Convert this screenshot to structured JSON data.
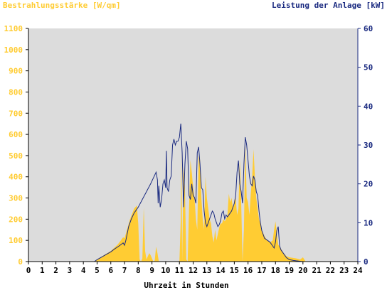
{
  "chart_data": {
    "type": "area",
    "left_axis_title": "Bestrahlungsstärke [W/qm]",
    "right_axis_title": "Leistung der Anlage [kW]",
    "xlabel": "Uhrzeit in Stunden",
    "x_ticks": [
      "0",
      "1",
      "2",
      "3",
      "4",
      "5",
      "6",
      "7",
      "8",
      "9",
      "10",
      "11",
      "12",
      "13",
      "14",
      "15",
      "16",
      "17",
      "18",
      "19",
      "20",
      "21",
      "22",
      "23",
      "24"
    ],
    "left_ticks": [
      "0",
      "100",
      "200",
      "300",
      "400",
      "500",
      "600",
      "700",
      "800",
      "900",
      "1000",
      "1100"
    ],
    "right_ticks": [
      "0",
      "10",
      "20",
      "30",
      "40",
      "50",
      "60"
    ],
    "xlim": [
      0,
      24
    ],
    "ylim_left": [
      0,
      1100
    ],
    "ylim_right": [
      0,
      60
    ],
    "colors": {
      "irradiance": "#ffcc33",
      "power": "#1a2a80",
      "plot_bg": "#dcdcdc",
      "left_axis": "#ffcc33",
      "right_axis": "#1a2a80"
    },
    "series": [
      {
        "axis": "left",
        "x": [
          0,
          4.8,
          5.0,
          5.5,
          6.0,
          6.5,
          6.9,
          7.0,
          7.4,
          7.7,
          7.9,
          8.0,
          8.1,
          8.2,
          8.3,
          8.4,
          8.5,
          8.6,
          8.8,
          8.9,
          9.0,
          9.1,
          9.2,
          9.3,
          9.4,
          9.5,
          9.6,
          9.8,
          10.0,
          10.5,
          11.0,
          11.1,
          11.15,
          11.2,
          11.3,
          11.4,
          11.5,
          11.6,
          11.7,
          11.8,
          11.9,
          12.0,
          12.1,
          12.2,
          12.3,
          12.4,
          12.5,
          12.6,
          12.7,
          12.8,
          12.9,
          13.0,
          13.1,
          13.2,
          13.3,
          13.4,
          13.5,
          13.6,
          13.7,
          13.8,
          13.9,
          14.0,
          14.1,
          14.2,
          14.3,
          14.4,
          14.5,
          14.6,
          14.7,
          14.8,
          14.9,
          15.0,
          15.1,
          15.2,
          15.3,
          15.4,
          15.5,
          15.6,
          15.7,
          15.8,
          15.9,
          16.0,
          16.1,
          16.2,
          16.3,
          16.4,
          16.5,
          16.6,
          16.7,
          16.8,
          16.9,
          17.0,
          17.2,
          17.4,
          17.6,
          17.8,
          17.9,
          18.0,
          18.1,
          18.2,
          18.4,
          18.6,
          18.8,
          19.0,
          19.5,
          19.8,
          20.0,
          20.2,
          24
        ],
        "values": [
          0,
          0,
          10,
          30,
          50,
          80,
          115,
          110,
          200,
          250,
          265,
          180,
          10,
          0,
          15,
          255,
          50,
          10,
          40,
          30,
          15,
          0,
          5,
          70,
          40,
          0,
          0,
          0,
          0,
          0,
          0,
          200,
          510,
          0,
          450,
          350,
          10,
          0,
          250,
          480,
          420,
          350,
          300,
          200,
          150,
          500,
          480,
          300,
          200,
          150,
          400,
          300,
          250,
          200,
          180,
          120,
          90,
          150,
          100,
          130,
          160,
          180,
          180,
          200,
          190,
          200,
          220,
          320,
          280,
          300,
          250,
          290,
          300,
          220,
          250,
          480,
          280,
          0,
          150,
          560,
          300,
          280,
          220,
          320,
          400,
          530,
          400,
          300,
          250,
          200,
          180,
          150,
          120,
          100,
          90,
          100,
          150,
          190,
          130,
          80,
          60,
          40,
          25,
          20,
          15,
          10,
          20,
          0,
          0
        ]
      },
      {
        "axis": "right",
        "x": [
          0,
          4.8,
          5.0,
          5.5,
          6.0,
          6.3,
          6.6,
          6.9,
          7.0,
          7.1,
          7.3,
          7.5,
          7.7,
          8.0,
          8.3,
          8.6,
          8.9,
          9.1,
          9.3,
          9.4,
          9.45,
          9.5,
          9.6,
          9.7,
          9.8,
          9.9,
          10.0,
          10.05,
          10.1,
          10.2,
          10.3,
          10.4,
          10.5,
          10.6,
          10.7,
          10.8,
          10.9,
          11.0,
          11.1,
          11.2,
          11.3,
          11.4,
          11.5,
          11.6,
          11.7,
          11.8,
          11.9,
          12.0,
          12.1,
          12.2,
          12.3,
          12.4,
          12.5,
          12.6,
          12.7,
          12.8,
          12.9,
          13.0,
          13.1,
          13.2,
          13.3,
          13.4,
          13.5,
          13.6,
          13.7,
          13.8,
          13.9,
          14.0,
          14.1,
          14.2,
          14.3,
          14.4,
          14.5,
          14.6,
          14.7,
          14.8,
          14.9,
          15.0,
          15.1,
          15.2,
          15.3,
          15.4,
          15.5,
          15.6,
          15.7,
          15.8,
          15.9,
          16.0,
          16.1,
          16.2,
          16.3,
          16.4,
          16.5,
          16.6,
          16.7,
          16.8,
          16.9,
          17.0,
          17.2,
          17.4,
          17.6,
          17.8,
          17.9,
          18.0,
          18.1,
          18.2,
          18.3,
          18.4,
          18.6,
          18.8,
          19.0,
          19.3,
          19.5,
          20.0,
          24
        ],
        "values": [
          0,
          0,
          0.5,
          1.5,
          2.5,
          3.3,
          4.0,
          4.8,
          4.2,
          5.5,
          9.0,
          11.0,
          12.5,
          14.0,
          16.0,
          18.0,
          20.0,
          21.5,
          23.0,
          21.0,
          15.0,
          19.5,
          14.0,
          16.0,
          20.0,
          21.0,
          19.0,
          28.5,
          19.0,
          18.0,
          21.0,
          22.0,
          30.0,
          31.5,
          30.0,
          31.0,
          31.0,
          32.0,
          35.5,
          28.0,
          14.0,
          25.0,
          31.0,
          29.0,
          17.0,
          16.0,
          20.0,
          17.0,
          16.5,
          15.0,
          28.0,
          29.5,
          25.0,
          19.0,
          18.5,
          13.0,
          10.0,
          9.0,
          10.0,
          11.0,
          12.0,
          13.0,
          12.5,
          11.0,
          10.0,
          9.0,
          9.5,
          10.5,
          12.5,
          13.0,
          11.0,
          12.0,
          11.5,
          12.0,
          12.5,
          13.0,
          14.0,
          15.0,
          17.0,
          23.0,
          26.0,
          20.0,
          18.0,
          15.0,
          25.0,
          32.0,
          30.0,
          26.0,
          22.0,
          20.0,
          19.5,
          22.0,
          21.0,
          18.0,
          17.0,
          13.0,
          10.0,
          8.0,
          6.0,
          5.5,
          5.0,
          4.0,
          3.5,
          5.0,
          8.0,
          9.0,
          4.0,
          3.0,
          2.0,
          1.0,
          0.5,
          0.3,
          0.2,
          0,
          0
        ]
      }
    ]
  }
}
